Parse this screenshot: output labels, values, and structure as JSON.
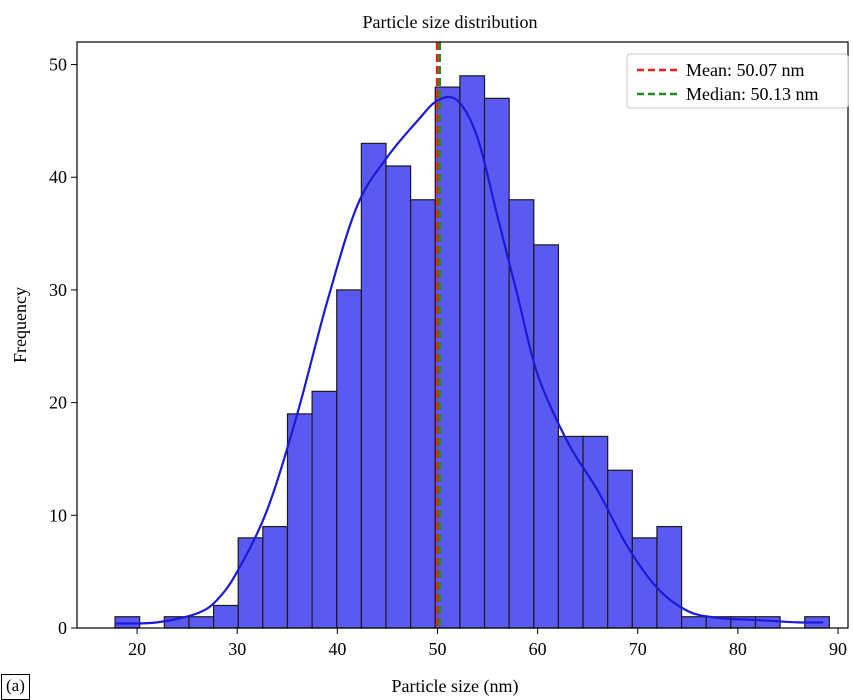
{
  "chart_data": {
    "type": "bar",
    "title": "Particle size distribution",
    "xlabel": "Particle size (nm)",
    "ylabel": "Frequency",
    "xlim": [
      14,
      91
    ],
    "ylim": [
      0,
      52
    ],
    "xticks": [
      20,
      30,
      40,
      50,
      60,
      70,
      80,
      90
    ],
    "yticks": [
      0,
      10,
      20,
      30,
      40,
      50
    ],
    "grid": false,
    "bin_width": 2.46,
    "bins_start": 17.8,
    "values": [
      1,
      0,
      1,
      1,
      2,
      8,
      9,
      19,
      21,
      30,
      43,
      41,
      38,
      48,
      49,
      47,
      38,
      34,
      17,
      17,
      14,
      8,
      9,
      1,
      1,
      1,
      1,
      0,
      1
    ],
    "kde": {
      "x": [
        17.8,
        22,
        26,
        28,
        30,
        33,
        36,
        39,
        42,
        45,
        48,
        50,
        52,
        54,
        56,
        58,
        60,
        63,
        66,
        69,
        72,
        75,
        78,
        82,
        86,
        88.5
      ],
      "y": [
        0.4,
        0.5,
        1.3,
        2.5,
        5,
        10.5,
        19,
        29,
        37.5,
        41.8,
        45,
        46.8,
        46.8,
        43.5,
        36.5,
        29.5,
        22.5,
        16.5,
        12.2,
        7.2,
        3.5,
        1.5,
        0.9,
        0.7,
        0.5,
        0.5
      ]
    },
    "bar_color": "#5a5af2",
    "kde_color": "#1a1ad8",
    "vlines": [
      {
        "label": "Mean: 50.07 nm",
        "x": 50.07,
        "color": "#e8221b"
      },
      {
        "label": "Median: 50.13 nm",
        "x": 50.13,
        "color": "#1f8a1f"
      }
    ],
    "legend_position": "top-right"
  },
  "panel_label": "(a)"
}
